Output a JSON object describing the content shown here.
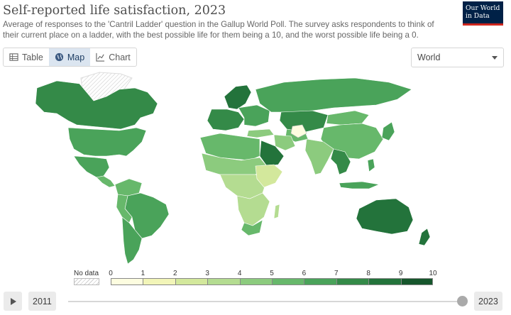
{
  "header": {
    "title": "Self-reported life satisfaction, 2023",
    "subtitle": "Average of responses to the 'Cantril Ladder' question in the Gallup World Poll. The survey asks respondents to think of their current place on a ladder, with the best possible life for them being a 10, and the worst possible life being a 0."
  },
  "logo": {
    "line1": "Our World",
    "line2": "in Data"
  },
  "tabs": [
    {
      "label": "Table",
      "icon": "table-icon"
    },
    {
      "label": "Map",
      "icon": "globe-icon",
      "active": true
    },
    {
      "label": "Chart",
      "icon": "line-chart-icon"
    }
  ],
  "region_select": {
    "value": "World"
  },
  "legend": {
    "no_data_label": "No data",
    "ticks": [
      "0",
      "1",
      "2",
      "3",
      "4",
      "5",
      "6",
      "7",
      "8",
      "9",
      "10"
    ],
    "colors": [
      "#fdfde0",
      "#f2f5b8",
      "#d3e89c",
      "#b4dc91",
      "#8ccb7e",
      "#67b86b",
      "#4aa35a",
      "#348a48",
      "#23733b",
      "#16562c"
    ]
  },
  "timeline": {
    "start_year": "2011",
    "end_year": "2023",
    "position": 1.0
  }
}
